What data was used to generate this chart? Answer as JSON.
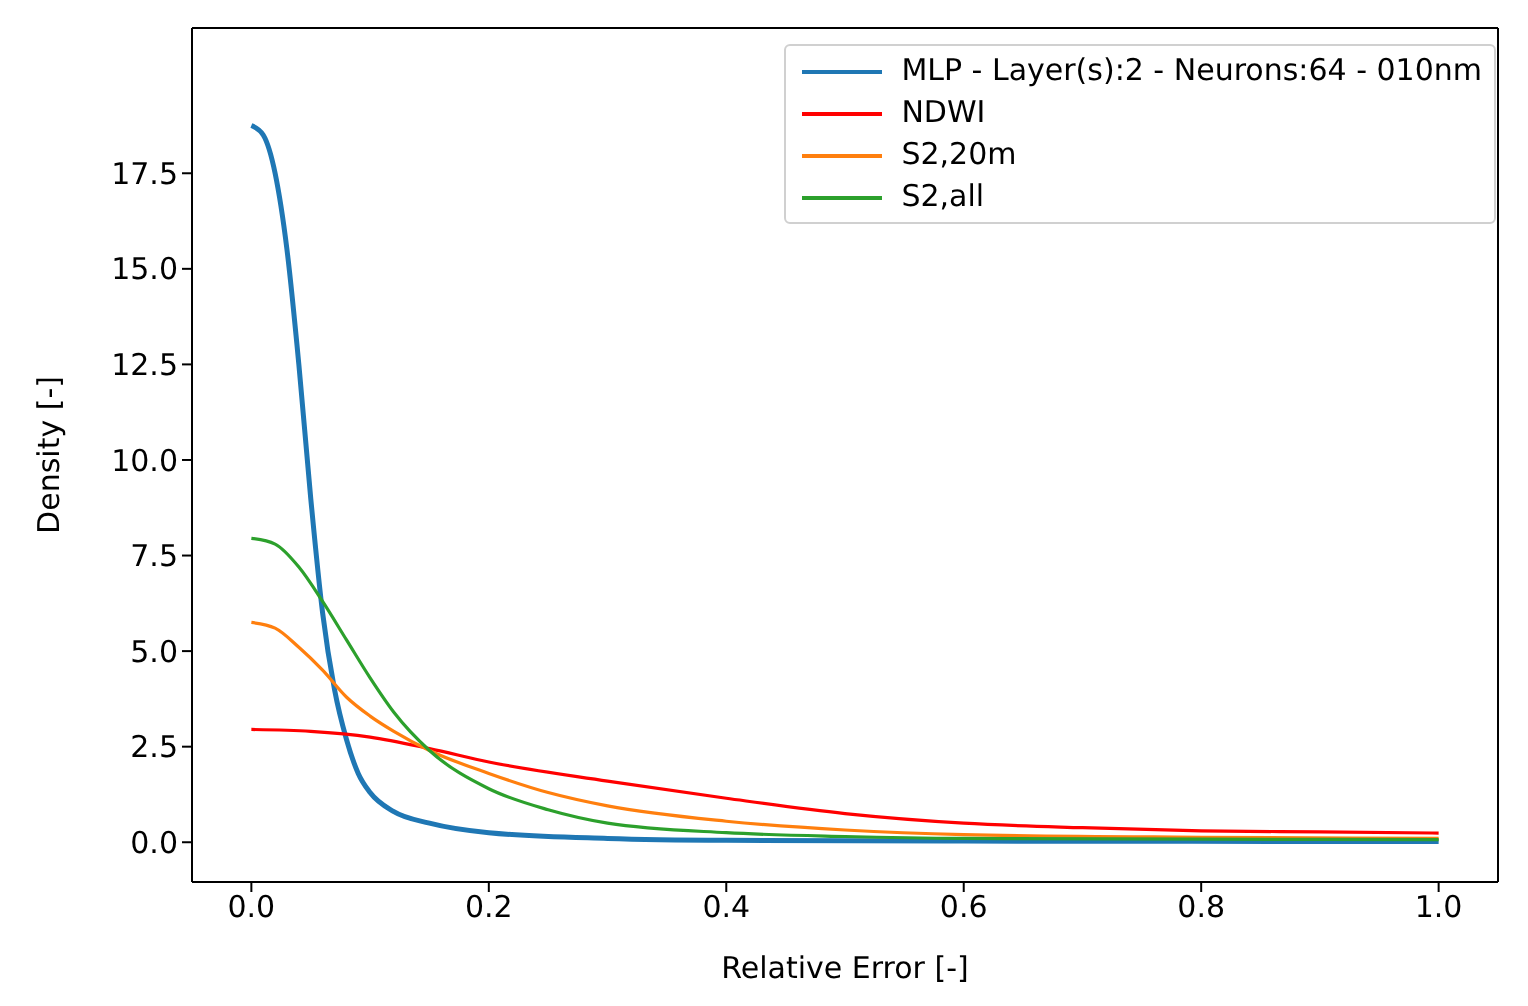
{
  "chart_data": {
    "type": "line",
    "xlabel": "Relative Error [-]",
    "ylabel": "Density [-]",
    "xlim": [
      -0.05,
      1.05
    ],
    "ylim": [
      -1.04,
      21.3
    ],
    "xticks": [
      {
        "value": 0,
        "label": "0.0"
      },
      {
        "value": 0.2,
        "label": "0.2"
      },
      {
        "value": 0.4,
        "label": "0.4"
      },
      {
        "value": 0.6,
        "label": "0.6"
      },
      {
        "value": 0.8,
        "label": "0.8"
      },
      {
        "value": 1,
        "label": "1.0"
      }
    ],
    "yticks": [
      {
        "value": 0,
        "label": "0.0"
      },
      {
        "value": 2.5,
        "label": "2.5"
      },
      {
        "value": 5,
        "label": "5.0"
      },
      {
        "value": 7.5,
        "label": "7.5"
      },
      {
        "value": 10,
        "label": "10.0"
      },
      {
        "value": 12.5,
        "label": "12.5"
      },
      {
        "value": 15,
        "label": "15.0"
      },
      {
        "value": 17.5,
        "label": "17.5"
      }
    ],
    "grid": false,
    "legend": "top right",
    "marker": "none",
    "line_style": "solid",
    "series": [
      {
        "name": "MLP - Layer(s):2 - Neurons:64 - 010nm",
        "color": "#1f77b4",
        "x": [
          0,
          0.01,
          0.02,
          0.03,
          0.04,
          0.05,
          0.06,
          0.07,
          0.08,
          0.09,
          0.1,
          0.12,
          0.15,
          0.2,
          0.3,
          0.4,
          0.6,
          1.0
        ],
        "values": [
          18.75,
          18.5,
          17.5,
          15.5,
          12.5,
          9,
          6,
          4,
          2.7,
          1.8,
          1.3,
          0.8,
          0.5,
          0.25,
          0.1,
          0.05,
          0.03,
          0.02
        ]
      },
      {
        "name": "NDWI",
        "color": "#ff0000",
        "x": [
          0,
          0.05,
          0.1,
          0.15,
          0.2,
          0.3,
          0.4,
          0.5,
          0.6,
          0.7,
          0.8,
          0.9,
          1.0
        ],
        "values": [
          2.95,
          2.9,
          2.75,
          2.45,
          2.1,
          1.6,
          1.15,
          0.75,
          0.5,
          0.38,
          0.3,
          0.27,
          0.24
        ]
      },
      {
        "name": "S2,20m",
        "color": "#ff7f0e",
        "x": [
          0,
          0.02,
          0.04,
          0.06,
          0.08,
          0.1,
          0.12,
          0.15,
          0.2,
          0.25,
          0.3,
          0.4,
          0.5,
          0.6,
          0.8,
          1.0
        ],
        "values": [
          5.75,
          5.6,
          5.1,
          4.5,
          3.8,
          3.3,
          2.9,
          2.4,
          1.8,
          1.3,
          0.95,
          0.55,
          0.32,
          0.2,
          0.13,
          0.1
        ]
      },
      {
        "name": "S2,all",
        "color": "#2ca02c",
        "x": [
          0,
          0.02,
          0.04,
          0.06,
          0.08,
          0.1,
          0.12,
          0.15,
          0.2,
          0.25,
          0.3,
          0.4,
          0.5,
          0.6,
          0.8,
          1.0
        ],
        "values": [
          7.95,
          7.8,
          7.2,
          6.3,
          5.3,
          4.3,
          3.4,
          2.4,
          1.4,
          0.85,
          0.5,
          0.25,
          0.15,
          0.1,
          0.08,
          0.07
        ]
      }
    ]
  }
}
